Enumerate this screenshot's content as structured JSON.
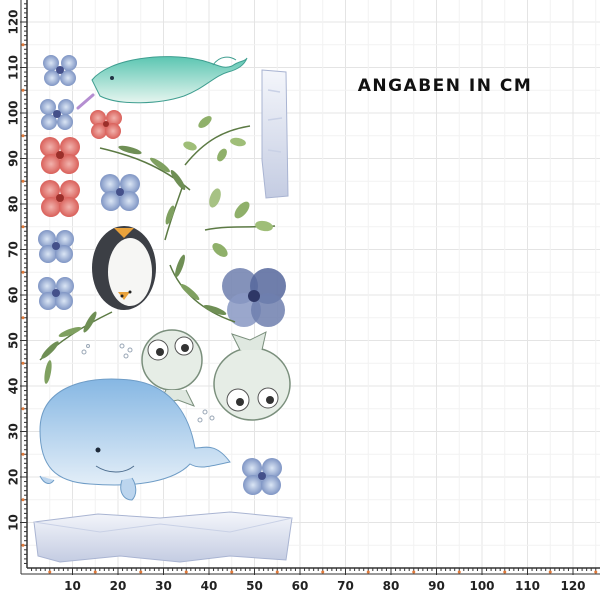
{
  "title": "ANGABEN IN CM",
  "x_ticks": [
    {
      "value": 10,
      "label": "10"
    },
    {
      "value": 20,
      "label": "20"
    },
    {
      "value": 30,
      "label": "30"
    },
    {
      "value": 40,
      "label": "40"
    },
    {
      "value": 50,
      "label": "50"
    },
    {
      "value": 60,
      "label": "60"
    },
    {
      "value": 70,
      "label": "70"
    },
    {
      "value": 80,
      "label": "80"
    },
    {
      "value": 90,
      "label": "90"
    },
    {
      "value": 100,
      "label": "100"
    },
    {
      "value": 110,
      "label": "110"
    },
    {
      "value": 120,
      "label": "120"
    }
  ],
  "y_ticks": [
    {
      "value": 10,
      "label": "10"
    },
    {
      "value": 20,
      "label": "20"
    },
    {
      "value": 30,
      "label": "30"
    },
    {
      "value": 40,
      "label": "40"
    },
    {
      "value": 50,
      "label": "50"
    },
    {
      "value": 60,
      "label": "60"
    },
    {
      "value": 70,
      "label": "70"
    },
    {
      "value": 80,
      "label": "80"
    },
    {
      "value": 90,
      "label": "90"
    },
    {
      "value": 100,
      "label": "100"
    },
    {
      "value": 110,
      "label": "110"
    },
    {
      "value": 120,
      "label": "120"
    }
  ],
  "colors": {
    "grid": "#e4e4e4",
    "ruler": "#333333",
    "accent_tick": "#e07a3a",
    "title": "#111111"
  }
}
